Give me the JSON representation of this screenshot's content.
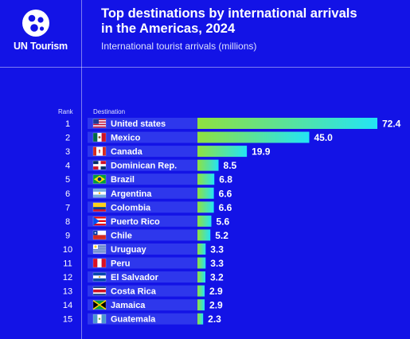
{
  "brand": {
    "name": "UN Tourism"
  },
  "header": {
    "title_line1": "Top destinations by international arrivals",
    "title_line2": "in the Americas, 2024",
    "subtitle": "International tourist arrivals (millions)"
  },
  "columns": {
    "rank": "Rank",
    "destination": "Destination"
  },
  "colors": {
    "background": "#1313e6",
    "bar_start": "#8fe13f",
    "bar_end": "#23e4f5",
    "label_band": "#2e37ec"
  },
  "chart_data": {
    "type": "bar",
    "orientation": "horizontal",
    "categories": [
      "United states",
      "Mexico",
      "Canada",
      "Dominican Rep.",
      "Brazil",
      "Argentina",
      "Colombia",
      "Puerto Rico",
      "Chile",
      "Uruguay",
      "Peru",
      "El Salvador",
      "Costa Rica",
      "Jamaica",
      "Guatemala"
    ],
    "ranks": [
      "1",
      "2",
      "3",
      "4",
      "5",
      "6",
      "7",
      "8",
      "9",
      "10",
      "11",
      "12",
      "13",
      "14",
      "15"
    ],
    "values": [
      72.4,
      45.0,
      19.9,
      8.5,
      6.8,
      6.6,
      6.6,
      5.6,
      5.2,
      3.3,
      3.3,
      3.2,
      2.9,
      2.9,
      2.3
    ],
    "value_labels": [
      "72.4",
      "45.0",
      "19.9",
      "8.5",
      "6.8",
      "6.6",
      "6.6",
      "5.6",
      "5.2",
      "3.3",
      "3.3",
      "3.2",
      "2.9",
      "2.9",
      "2.3"
    ],
    "flags": [
      "us-flag",
      "mexico-flag",
      "canada-flag",
      "dominican-republic-flag",
      "brazil-flag",
      "argentina-flag",
      "colombia-flag",
      "puerto-rico-flag",
      "chile-flag",
      "uruguay-flag",
      "peru-flag",
      "el-salvador-flag",
      "costa-rica-flag",
      "jamaica-flag",
      "guatemala-flag"
    ],
    "xlim": [
      0,
      72.4
    ],
    "grid": false
  }
}
